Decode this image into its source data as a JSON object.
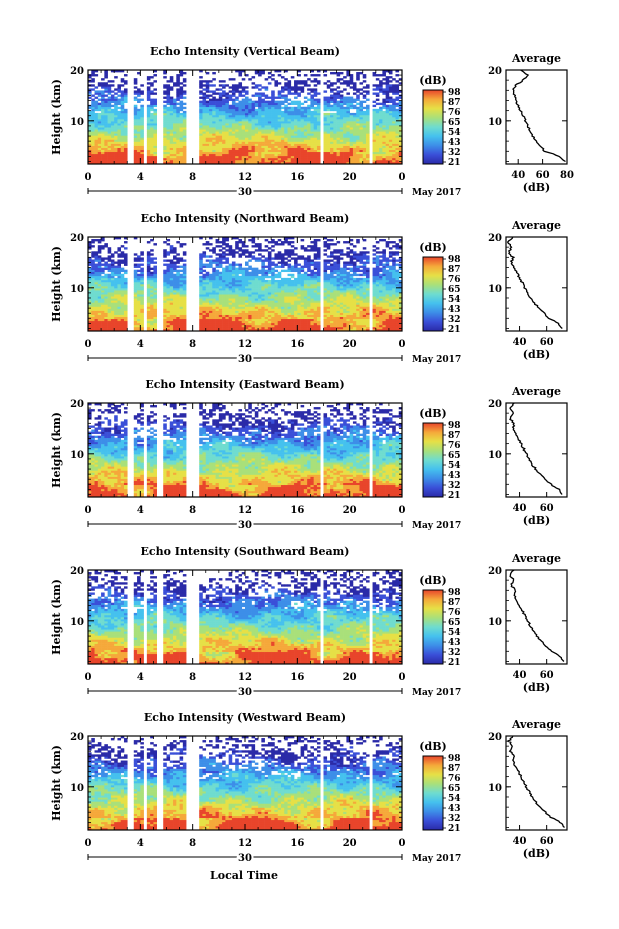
{
  "figure": {
    "xlabel": "Local Time",
    "date_label": "30",
    "month_label": "May 2017",
    "colorbar_unit": "(dB)",
    "average_title": "Average",
    "average_xlabel": "(dB)",
    "ylabel": "Height (km)",
    "colormap": [
      "#2a2aa8",
      "#3a4fd8",
      "#3d8ee8",
      "#45c1ee",
      "#6fdccf",
      "#a9e07a",
      "#e6e046",
      "#f5a83a",
      "#e8452b"
    ]
  },
  "chart_data": [
    {
      "type": "heatmap",
      "title": "Echo Intensity (Vertical Beam)",
      "ylabel": "Height (km)",
      "xlabel": "",
      "x_ticks": [
        "0",
        "4",
        "8",
        "12",
        "16",
        "20",
        "0"
      ],
      "y_ticks": [
        "20",
        "10"
      ],
      "xlim": [
        0,
        24
      ],
      "ylim": [
        1.5,
        20
      ],
      "colorbar_label": "(dB)",
      "colorbar_ticks": [
        "98",
        "87",
        "76",
        "65",
        "54",
        "43",
        "32",
        "21"
      ],
      "gaps_hours": [
        [
          3.1,
          3.5
        ],
        [
          4.2,
          4.5
        ],
        [
          5.3,
          5.7
        ],
        [
          7.6,
          8.6
        ],
        [
          17.7,
          18.0
        ],
        [
          21.6,
          21.8
        ]
      ],
      "profile": {
        "title": "Average",
        "xlabel": "(dB)",
        "x_ticks": [
          "40",
          "60",
          "80"
        ],
        "xlim": [
          30,
          80
        ],
        "y_ticks": [
          "20",
          "10"
        ],
        "heights": [
          2,
          3,
          4,
          5,
          6,
          7,
          8,
          9,
          10,
          11,
          12,
          13,
          14,
          15,
          16,
          17,
          18,
          19,
          20
        ],
        "values": [
          78,
          74,
          62,
          58,
          55,
          52,
          50,
          48,
          46,
          44,
          42,
          40,
          38,
          37,
          36,
          38,
          44,
          48,
          42
        ]
      }
    },
    {
      "type": "heatmap",
      "title": "Echo Intensity (Northward Beam)",
      "ylabel": "Height (km)",
      "xlabel": "",
      "x_ticks": [
        "0",
        "4",
        "8",
        "12",
        "16",
        "20",
        "0"
      ],
      "y_ticks": [
        "20",
        "10"
      ],
      "xlim": [
        0,
        24
      ],
      "ylim": [
        1.5,
        20
      ],
      "colorbar_label": "(dB)",
      "colorbar_ticks": [
        "98",
        "87",
        "76",
        "65",
        "54",
        "43",
        "32",
        "21"
      ],
      "gaps_hours": [
        [
          3.1,
          3.5
        ],
        [
          4.2,
          4.5
        ],
        [
          5.3,
          5.7
        ],
        [
          7.6,
          8.6
        ],
        [
          17.7,
          18.0
        ],
        [
          21.6,
          21.8
        ]
      ],
      "profile": {
        "title": "Average",
        "xlabel": "(dB)",
        "x_ticks": [
          "40",
          "60"
        ],
        "xlim": [
          30,
          75
        ],
        "y_ticks": [
          "20",
          "10"
        ],
        "heights": [
          2,
          3,
          4,
          5,
          6,
          7,
          8,
          9,
          10,
          11,
          12,
          13,
          14,
          15,
          16,
          17,
          18,
          19,
          20
        ],
        "values": [
          72,
          68,
          62,
          58,
          54,
          51,
          48,
          46,
          44,
          42,
          40,
          38,
          36,
          34,
          35,
          32,
          34,
          32,
          35
        ]
      }
    },
    {
      "type": "heatmap",
      "title": "Echo Intensity (Eastward Beam)",
      "ylabel": "Height (km)",
      "xlabel": "",
      "x_ticks": [
        "0",
        "4",
        "8",
        "12",
        "16",
        "20",
        "0"
      ],
      "y_ticks": [
        "20",
        "10"
      ],
      "xlim": [
        0,
        24
      ],
      "ylim": [
        1.5,
        20
      ],
      "colorbar_label": "(dB)",
      "colorbar_ticks": [
        "98",
        "87",
        "76",
        "65",
        "54",
        "43",
        "32",
        "21"
      ],
      "gaps_hours": [
        [
          3.1,
          3.5
        ],
        [
          4.2,
          4.5
        ],
        [
          5.3,
          5.7
        ],
        [
          7.6,
          8.6
        ],
        [
          17.7,
          18.0
        ],
        [
          21.6,
          21.8
        ]
      ],
      "profile": {
        "title": "Average",
        "xlabel": "(dB)",
        "x_ticks": [
          "40",
          "60"
        ],
        "xlim": [
          30,
          75
        ],
        "y_ticks": [
          "20",
          "10"
        ],
        "heights": [
          2,
          3,
          4,
          5,
          6,
          7,
          8,
          9,
          10,
          11,
          12,
          13,
          14,
          15,
          16,
          17,
          18,
          19,
          20
        ],
        "values": [
          72,
          69,
          63,
          59,
          55,
          52,
          49,
          47,
          45,
          43,
          41,
          39,
          37,
          35,
          36,
          33,
          35,
          33,
          36
        ]
      }
    },
    {
      "type": "heatmap",
      "title": "Echo Intensity (Southward Beam)",
      "ylabel": "Height (km)",
      "xlabel": "",
      "x_ticks": [
        "0",
        "4",
        "8",
        "12",
        "16",
        "20",
        "0"
      ],
      "y_ticks": [
        "20",
        "10"
      ],
      "xlim": [
        0,
        24
      ],
      "ylim": [
        1.5,
        20
      ],
      "colorbar_label": "(dB)",
      "colorbar_ticks": [
        "98",
        "87",
        "76",
        "65",
        "54",
        "43",
        "32",
        "21"
      ],
      "gaps_hours": [
        [
          3.1,
          3.5
        ],
        [
          4.2,
          4.5
        ],
        [
          5.3,
          5.7
        ],
        [
          7.6,
          8.6
        ],
        [
          17.7,
          18.0
        ],
        [
          21.6,
          21.8
        ]
      ],
      "profile": {
        "title": "Average",
        "xlabel": "(dB)",
        "x_ticks": [
          "40",
          "60"
        ],
        "xlim": [
          30,
          75
        ],
        "y_ticks": [
          "20",
          "10"
        ],
        "heights": [
          2,
          3,
          4,
          5,
          6,
          7,
          8,
          9,
          10,
          11,
          12,
          13,
          14,
          15,
          16,
          17,
          18,
          19,
          20
        ],
        "values": [
          72,
          70,
          64,
          60,
          56,
          53,
          50,
          48,
          46,
          44,
          42,
          40,
          38,
          36,
          37,
          34,
          36,
          33,
          36
        ]
      }
    },
    {
      "type": "heatmap",
      "title": "Echo Intensity (Westward Beam)",
      "ylabel": "Height (km)",
      "xlabel": "Local Time",
      "x_ticks": [
        "0",
        "4",
        "8",
        "12",
        "16",
        "20",
        "0"
      ],
      "y_ticks": [
        "20",
        "10"
      ],
      "xlim": [
        0,
        24
      ],
      "ylim": [
        1.5,
        20
      ],
      "colorbar_label": "(dB)",
      "colorbar_ticks": [
        "98",
        "87",
        "76",
        "65",
        "54",
        "43",
        "32",
        "21"
      ],
      "gaps_hours": [
        [
          3.1,
          3.5
        ],
        [
          4.2,
          4.5
        ],
        [
          5.3,
          5.7
        ],
        [
          7.6,
          8.6
        ],
        [
          17.7,
          18.0
        ],
        [
          21.6,
          21.8
        ]
      ],
      "profile": {
        "title": "Average",
        "xlabel": "(dB)",
        "x_ticks": [
          "40",
          "60"
        ],
        "xlim": [
          30,
          75
        ],
        "y_ticks": [
          "20",
          "10"
        ],
        "heights": [
          2,
          3,
          4,
          5,
          6,
          7,
          8,
          9,
          10,
          11,
          12,
          13,
          14,
          15,
          16,
          17,
          18,
          19,
          20
        ],
        "values": [
          73,
          70,
          63,
          59,
          55,
          52,
          49,
          47,
          45,
          43,
          41,
          39,
          37,
          35,
          36,
          33,
          35,
          32,
          35
        ]
      }
    }
  ]
}
